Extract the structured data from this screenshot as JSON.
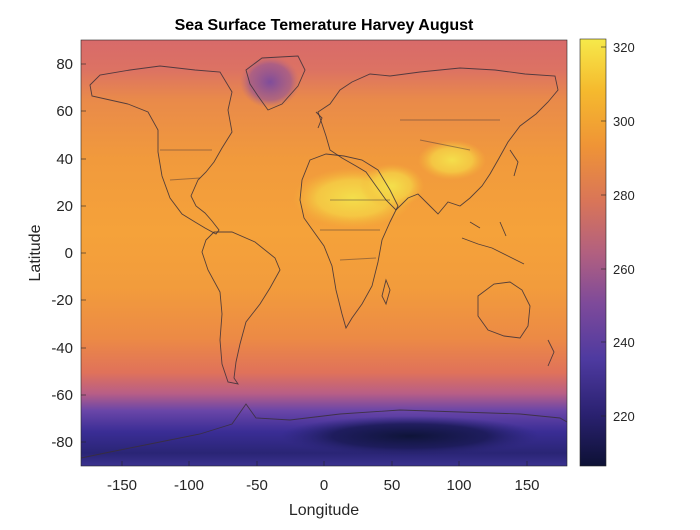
{
  "title": "Sea Surface Temerature Harvey August",
  "xlabel": "Longitude",
  "ylabel": "Latitude",
  "x_ticks": [
    "-150",
    "-100",
    "-50",
    "0",
    "50",
    "100",
    "150"
  ],
  "y_ticks": [
    "80",
    "60",
    "40",
    "20",
    "0",
    "-20",
    "-40",
    "-60",
    "-80"
  ],
  "colorbar_ticks": [
    "320",
    "300",
    "280",
    "260",
    "240",
    "220"
  ],
  "chart_data": {
    "type": "heatmap",
    "title": "Sea Surface Temerature Harvey August",
    "xlabel": "Longitude",
    "ylabel": "Latitude",
    "xlim": [
      -180,
      180
    ],
    "ylim": [
      -90,
      90
    ],
    "x_tick_values": [
      -150,
      -100,
      -50,
      0,
      50,
      100,
      150
    ],
    "y_tick_values": [
      -80,
      -60,
      -40,
      -20,
      0,
      20,
      40,
      60,
      80
    ],
    "colorbar": {
      "range": [
        206,
        323
      ],
      "ticks": [
        220,
        240,
        260,
        280,
        300,
        320
      ],
      "colormap": [
        "#0d1135",
        "#2a2170",
        "#4e3aa0",
        "#7e4a9a",
        "#b2607f",
        "#d97558",
        "#ef9436",
        "#f5ba2e",
        "#f6e94a"
      ]
    },
    "overlay": "country coastlines",
    "approx_values_by_latitude": [
      {
        "lat": 85,
        "value": 268
      },
      {
        "lat": 75,
        "value": 272
      },
      {
        "lat": 60,
        "value": 285
      },
      {
        "lat": 40,
        "value": 295
      },
      {
        "lat": 20,
        "value": 300
      },
      {
        "lat": 0,
        "value": 302
      },
      {
        "lat": -20,
        "value": 298
      },
      {
        "lat": -40,
        "value": 287
      },
      {
        "lat": -55,
        "value": 276
      },
      {
        "lat": -65,
        "value": 255
      },
      {
        "lat": -80,
        "value": 230
      }
    ],
    "hot_regions": [
      "Sahara / Arabia (~320)",
      "Tibet / South Asia (~315)"
    ],
    "cold_regions": [
      "Greenland (~255)",
      "Antarctica interior (~210)"
    ]
  }
}
